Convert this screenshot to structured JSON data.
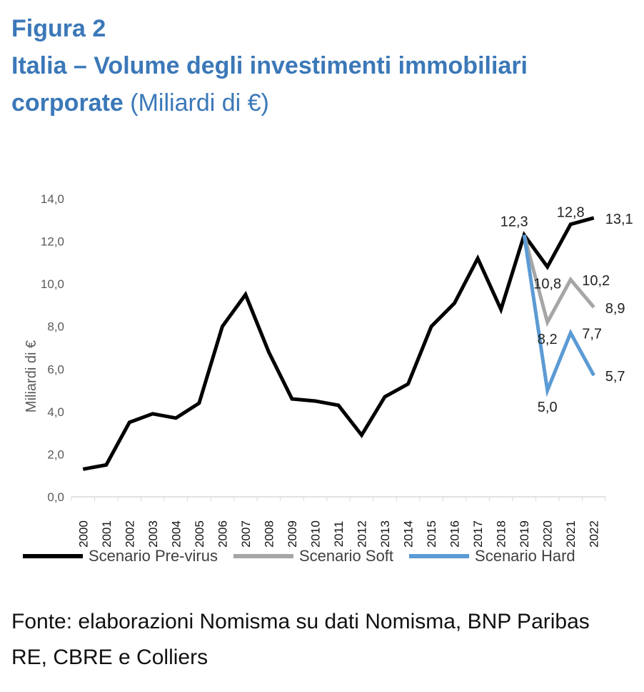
{
  "figure": {
    "label": "Figura 2",
    "title_bold": "Italia – Volume degli investimenti immobiliari corporate",
    "title_unit": "(Miliardi di €)"
  },
  "source": "Fonte: elaborazioni Nomisma su dati Nomisma, BNP Paribas RE, CBRE e Colliers",
  "colors": {
    "title": "#3B78B8",
    "pre_virus": "#000000",
    "soft": "#A6A6A6",
    "hard": "#5B9BD5",
    "axis_text": "#595959"
  },
  "chart_data": {
    "type": "line",
    "title": "",
    "xlabel": "",
    "ylabel": "Miliardi di €",
    "ylim": [
      0,
      14
    ],
    "yticks": [
      "0,0",
      "2,0",
      "4,0",
      "6,0",
      "8,0",
      "10,0",
      "12,0",
      "14,0"
    ],
    "categories": [
      "2000",
      "2001",
      "2002",
      "2003",
      "2004",
      "2005",
      "2006",
      "2007",
      "2008",
      "2009",
      "2010",
      "2011",
      "2012",
      "2013",
      "2014",
      "2015",
      "2016",
      "2017",
      "2018",
      "2019",
      "2020",
      "2021",
      "2022"
    ],
    "grid": false,
    "legend_position": "bottom",
    "series": [
      {
        "name": "Scenario Pre-virus",
        "color": "#000000",
        "values": [
          1.3,
          1.5,
          3.5,
          3.9,
          3.7,
          4.4,
          8.0,
          9.5,
          6.8,
          4.6,
          4.5,
          4.3,
          2.9,
          4.7,
          5.3,
          8.0,
          9.1,
          11.2,
          8.8,
          12.3,
          10.8,
          12.8,
          13.1
        ]
      },
      {
        "name": "Scenario Soft",
        "color": "#A6A6A6",
        "values": [
          null,
          null,
          null,
          null,
          null,
          null,
          null,
          null,
          null,
          null,
          null,
          null,
          null,
          null,
          null,
          null,
          null,
          null,
          null,
          12.3,
          8.2,
          10.2,
          8.9
        ]
      },
      {
        "name": "Scenario Hard",
        "color": "#5B9BD5",
        "values": [
          null,
          null,
          null,
          null,
          null,
          null,
          null,
          null,
          null,
          null,
          null,
          null,
          null,
          null,
          null,
          null,
          null,
          null,
          null,
          12.3,
          5.0,
          7.7,
          5.7
        ]
      }
    ],
    "data_labels": [
      {
        "category": "2019",
        "value": 12.3,
        "text": "12,3",
        "anchor": "above-left"
      },
      {
        "category": "2020",
        "value": 10.8,
        "text": "10,8",
        "anchor": "below"
      },
      {
        "category": "2021",
        "value": 12.8,
        "text": "12,8",
        "anchor": "above"
      },
      {
        "category": "2022",
        "value": 13.1,
        "text": "13,1",
        "anchor": "right"
      },
      {
        "category": "2021",
        "value": 10.2,
        "text": "10,2",
        "anchor": "right"
      },
      {
        "category": "2022",
        "value": 8.9,
        "text": "8,9",
        "anchor": "right"
      },
      {
        "category": "2020",
        "value": 8.2,
        "text": "8,2",
        "anchor": "below"
      },
      {
        "category": "2021",
        "value": 7.7,
        "text": "7,7",
        "anchor": "right"
      },
      {
        "category": "2020",
        "value": 5.0,
        "text": "5,0",
        "anchor": "below"
      },
      {
        "category": "2022",
        "value": 5.7,
        "text": "5,7",
        "anchor": "right"
      }
    ]
  }
}
